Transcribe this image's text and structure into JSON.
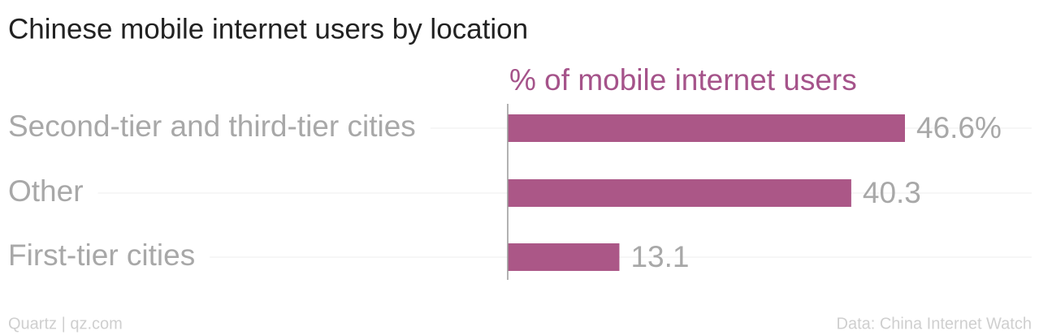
{
  "chart_data": {
    "type": "bar",
    "orientation": "horizontal",
    "title": "Chinese mobile internet users by location",
    "x_label": "% of mobile internet users",
    "categories": [
      "Second-tier and third-tier cities",
      "Other",
      "First-tier cities"
    ],
    "values": [
      46.6,
      40.3,
      13.1
    ],
    "value_labels": [
      "46.6%",
      "40.3",
      "13.1"
    ],
    "color": "#ab5787",
    "source_left": "Quartz | qz.com",
    "source_right": "Data: China Internet Watch"
  }
}
